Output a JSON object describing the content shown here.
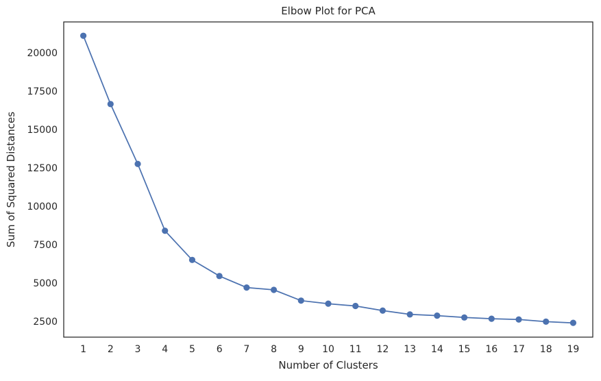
{
  "chart_data": {
    "type": "line",
    "title": "Elbow Plot for PCA",
    "xlabel": "Number of Clusters",
    "ylabel": "Sum of Squared Distances",
    "x": [
      1,
      2,
      3,
      4,
      5,
      6,
      7,
      8,
      9,
      10,
      11,
      12,
      13,
      14,
      15,
      16,
      17,
      18,
      19
    ],
    "series": [
      {
        "values": [
          21100,
          16650,
          12750,
          8400,
          6500,
          5450,
          4700,
          4550,
          3850,
          3650,
          3500,
          3200,
          2950,
          2870,
          2750,
          2670,
          2620,
          2480,
          2400
        ]
      }
    ],
    "xticks": [
      "1",
      "2",
      "3",
      "4",
      "5",
      "6",
      "7",
      "8",
      "9",
      "10",
      "11",
      "12",
      "13",
      "14",
      "15",
      "16",
      "17",
      "18",
      "19"
    ],
    "yticks": [
      "2500",
      "5000",
      "7500",
      "10000",
      "12500",
      "15000",
      "17500",
      "20000"
    ],
    "ytick_values": [
      2500,
      5000,
      7500,
      10000,
      12500,
      15000,
      17500,
      20000
    ],
    "xlim": [
      0.28,
      19.72
    ],
    "ylim": [
      1470,
      22000
    ],
    "grid": false,
    "marker": "circle",
    "line_color": "#4c72b0"
  }
}
